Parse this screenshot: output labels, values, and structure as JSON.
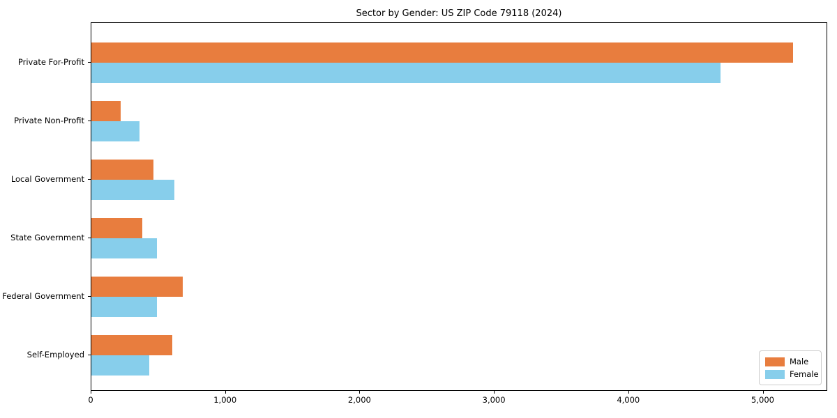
{
  "chart_data": {
    "type": "bar",
    "orientation": "horizontal",
    "title": "Sector by Gender: US ZIP Code 79118 (2024)",
    "categories": [
      "Private For-Profit",
      "Private Non-Profit",
      "Local Government",
      "State Government",
      "Federal Government",
      "Self-Employed"
    ],
    "series": [
      {
        "name": "Male",
        "color": "#e87d3e",
        "values": [
          5220,
          220,
          460,
          380,
          680,
          600
        ]
      },
      {
        "name": "Female",
        "color": "#87ceeb",
        "values": [
          4680,
          360,
          620,
          490,
          490,
          430
        ]
      }
    ],
    "xlabel": "",
    "ylabel": "",
    "xlim": [
      0,
      5480
    ],
    "xticks": [
      0,
      1000,
      2000,
      3000,
      4000,
      5000
    ],
    "xtick_labels": [
      "0",
      "1,000",
      "2,000",
      "3,000",
      "4,000",
      "5,000"
    ],
    "grid": false,
    "legend": {
      "position": "lower right",
      "entries": [
        {
          "label": "Male",
          "color": "#e87d3e"
        },
        {
          "label": "Female",
          "color": "#87ceeb"
        }
      ]
    }
  }
}
